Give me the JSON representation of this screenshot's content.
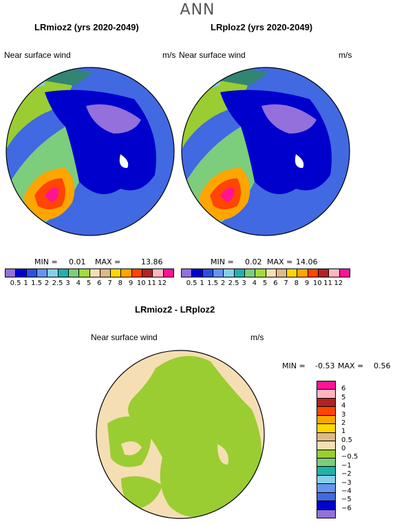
{
  "header": {
    "title": "ANN"
  },
  "panels": [
    {
      "title": "LRmioz2 (yrs 2020-2049)",
      "variable": "Near surface wind",
      "units": "m/s",
      "min_label": "MIN =",
      "min_value": "0.01",
      "max_label": "MAX =",
      "max_value": "13.86"
    },
    {
      "title": "LRploz2 (yrs 2020-2049)",
      "variable": "Near surface wind",
      "units": "m/s",
      "min_label": "MIN =",
      "min_value": "0.02",
      "max_label": "MAX =",
      "max_value": "14.06"
    }
  ],
  "diff": {
    "title": "LRmioz2 - LRploz2",
    "variable": "Near surface wind",
    "units": "m/s",
    "min_label": "MIN =",
    "min_value": "-0.53",
    "max_label": "MAX =",
    "max_value": "0.56"
  },
  "colorbar_top": {
    "colors": [
      "#9370db",
      "#0000cd",
      "#2b50e0",
      "#6495ed",
      "#87ceeb",
      "#20b2aa",
      "#7ccd7c",
      "#a0dc3c",
      "#f5deb3",
      "#deb887",
      "#ffd700",
      "#ffa500",
      "#ff4500",
      "#b22222",
      "#ffb6c1",
      "#ff1493"
    ],
    "labels": [
      "0.5",
      "1",
      "1.5",
      "2",
      "2.5",
      "3",
      "4",
      "5",
      "6",
      "7",
      "8",
      "9",
      "10",
      "11",
      "12"
    ]
  },
  "colorbar_diff": {
    "colors": [
      "#ff1493",
      "#ffb6c1",
      "#b22222",
      "#ff4500",
      "#ffa500",
      "#ffd700",
      "#deb887",
      "#f5deb3",
      "#9acd32",
      "#7ccd7c",
      "#20b2aa",
      "#87ceeb",
      "#6495ed",
      "#4169e1",
      "#0000cd",
      "#9370db"
    ],
    "labels": [
      "6",
      "5",
      "4",
      "3",
      "2",
      "1",
      "0.5",
      "0",
      "−0.5",
      "−1",
      "−2",
      "−3",
      "−4",
      "−5",
      "−6"
    ]
  }
}
